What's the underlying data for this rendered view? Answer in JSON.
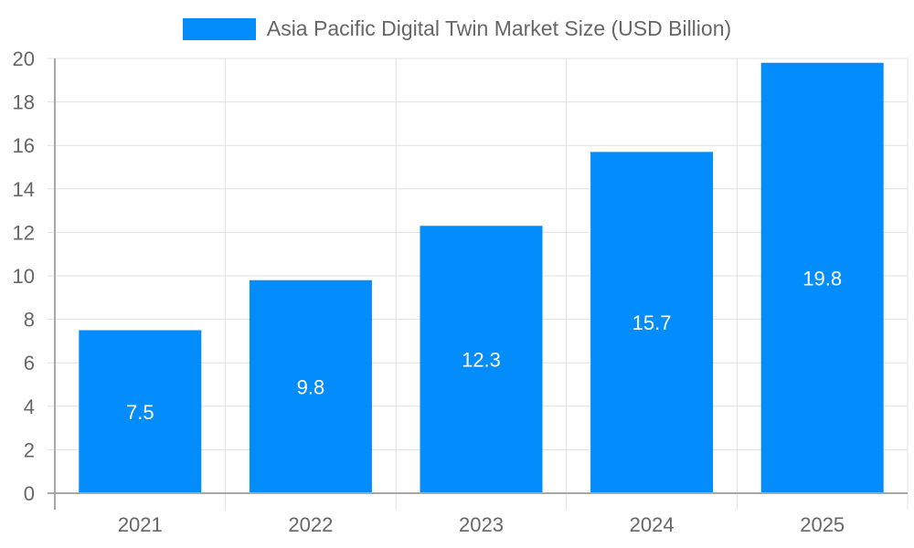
{
  "chart_data": {
    "type": "bar",
    "title": "",
    "categories": [
      "2021",
      "2022",
      "2023",
      "2024",
      "2025"
    ],
    "series": [
      {
        "name": "Asia Pacific Digital Twin Market Size (USD Billion)",
        "values": [
          7.5,
          9.8,
          12.3,
          15.7,
          19.8
        ],
        "color": "#038cfc"
      }
    ],
    "data_labels": [
      "7.5",
      "9.8",
      "12.3",
      "15.7",
      "19.8"
    ],
    "xlabel": "",
    "ylabel": "",
    "ylim": [
      0,
      20
    ],
    "yticks": [
      "0",
      "2",
      "4",
      "6",
      "8",
      "10",
      "12",
      "14",
      "16",
      "18",
      "20"
    ],
    "grid": true,
    "legend_position": "top"
  },
  "legend": {
    "label": "Asia Pacific Digital Twin Market Size (USD Billion)",
    "color": "#038cfc"
  }
}
